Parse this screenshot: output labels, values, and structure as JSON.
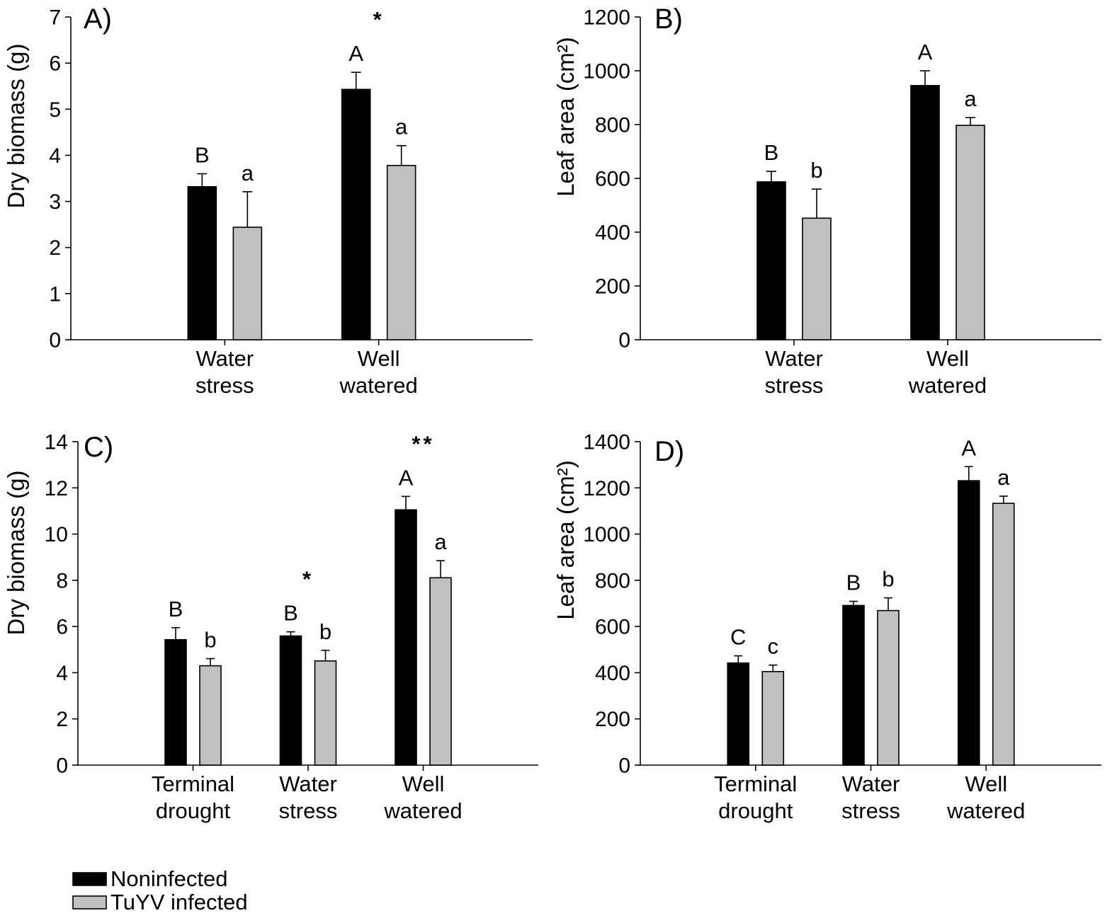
{
  "figure": {
    "legend": {
      "items": [
        {
          "label": "Noninfected",
          "color": "#000000"
        },
        {
          "label": "TuYV infected",
          "color": "#c0c0c0"
        }
      ]
    }
  },
  "chart_data": [
    {
      "panel": "A)",
      "type": "bar",
      "ylabel": "Dry biomass (g)",
      "ylim": [
        0,
        7
      ],
      "yticks": [
        0,
        1,
        2,
        3,
        4,
        5,
        6,
        7
      ],
      "categories": [
        "Water stress",
        "Well watered"
      ],
      "series": [
        {
          "legend_index": 0,
          "values": [
            3.32,
            5.43
          ],
          "errors": [
            0.28,
            0.37
          ],
          "letters": [
            "B",
            "A"
          ]
        },
        {
          "legend_index": 1,
          "values": [
            2.44,
            3.78
          ],
          "errors": [
            0.77,
            0.43
          ],
          "letters": [
            "a",
            "a"
          ]
        }
      ],
      "annotations": [
        {
          "category": 1,
          "text": "*"
        }
      ]
    },
    {
      "panel": "B)",
      "type": "bar",
      "ylabel": "Leaf area (cm²)",
      "ylim": [
        0,
        1200
      ],
      "yticks": [
        0,
        200,
        400,
        600,
        800,
        1000,
        1200
      ],
      "categories": [
        "Water stress",
        "Well watered"
      ],
      "series": [
        {
          "legend_index": 0,
          "values": [
            587,
            945
          ],
          "errors": [
            39,
            55
          ],
          "letters": [
            "B",
            "A"
          ]
        },
        {
          "legend_index": 1,
          "values": [
            452,
            797
          ],
          "errors": [
            108,
            29
          ],
          "letters": [
            "b",
            "a"
          ]
        }
      ],
      "annotations": []
    },
    {
      "panel": "C)",
      "type": "bar",
      "ylabel": "Dry biomass (g)",
      "ylim": [
        0,
        14
      ],
      "yticks": [
        0,
        2,
        4,
        6,
        8,
        10,
        12,
        14
      ],
      "categories": [
        "Terminal drought",
        "Water stress",
        "Well watered"
      ],
      "series": [
        {
          "legend_index": 0,
          "values": [
            5.43,
            5.59,
            11.05
          ],
          "errors": [
            0.52,
            0.18,
            0.58
          ],
          "letters": [
            "B",
            "B",
            "A"
          ]
        },
        {
          "legend_index": 1,
          "values": [
            4.3,
            4.51,
            8.11
          ],
          "errors": [
            0.31,
            0.46,
            0.74
          ],
          "letters": [
            "b",
            "b",
            "a"
          ]
        }
      ],
      "annotations": [
        {
          "category": 1,
          "text": "*"
        },
        {
          "category": 2,
          "text": "**"
        }
      ]
    },
    {
      "panel": "D)",
      "type": "bar",
      "ylabel": "Leaf area (cm²)",
      "ylim": [
        0,
        1400
      ],
      "yticks": [
        0,
        200,
        400,
        600,
        800,
        1000,
        1200,
        1400
      ],
      "categories": [
        "Terminal drought",
        "Water stress",
        "Well watered"
      ],
      "series": [
        {
          "legend_index": 0,
          "values": [
            442,
            691,
            1231
          ],
          "errors": [
            31,
            18,
            61
          ],
          "letters": [
            "C",
            "B",
            "A"
          ]
        },
        {
          "legend_index": 1,
          "values": [
            405,
            669,
            1133
          ],
          "errors": [
            28,
            55,
            31
          ],
          "letters": [
            "c",
            "b",
            "a"
          ]
        }
      ],
      "annotations": []
    }
  ]
}
